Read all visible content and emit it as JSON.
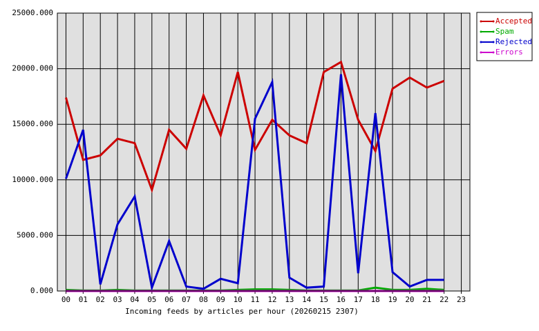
{
  "chart_data": {
    "type": "line",
    "x_label": "Incoming feeds by articles per hour (20260215 2307)",
    "categories": [
      "00",
      "01",
      "02",
      "03",
      "04",
      "05",
      "06",
      "07",
      "08",
      "09",
      "10",
      "11",
      "12",
      "13",
      "14",
      "15",
      "16",
      "17",
      "18",
      "19",
      "20",
      "21",
      "22",
      "23"
    ],
    "series": [
      {
        "name": "Accepted",
        "color": "#cc0000",
        "values": [
          17400,
          11800,
          12200,
          13700,
          13300,
          9100,
          14500,
          12800,
          17600,
          14000,
          19700,
          12700,
          15400,
          14000,
          13300,
          19700,
          20600,
          15400,
          12600,
          18200,
          19200,
          18300,
          18900,
          null
        ]
      },
      {
        "name": "Spam",
        "color": "#00aa00",
        "values": [
          100,
          50,
          50,
          100,
          50,
          50,
          50,
          50,
          50,
          50,
          100,
          150,
          150,
          100,
          50,
          50,
          50,
          50,
          300,
          100,
          100,
          200,
          100,
          null
        ]
      },
      {
        "name": "Rejected",
        "color": "#0000cc",
        "values": [
          10100,
          14500,
          600,
          6000,
          8500,
          300,
          4500,
          400,
          200,
          1100,
          700,
          15500,
          18800,
          1200,
          300,
          400,
          19500,
          1600,
          16000,
          1700,
          400,
          1000,
          1000,
          null
        ]
      },
      {
        "name": "Errors",
        "color": "#cc00cc",
        "values": [
          0,
          0,
          0,
          0,
          0,
          0,
          0,
          0,
          0,
          0,
          0,
          0,
          0,
          0,
          0,
          0,
          0,
          0,
          0,
          0,
          0,
          0,
          0,
          null
        ]
      }
    ],
    "ylim": [
      0,
      25000
    ],
    "yticks": [
      {
        "value": 0,
        "label": "0.000"
      },
      {
        "value": 5000,
        "label": "5000.000"
      },
      {
        "value": 10000,
        "label": "10000.000"
      },
      {
        "value": 15000,
        "label": "15000.000"
      },
      {
        "value": 20000,
        "label": "20000.000"
      },
      {
        "value": 25000,
        "label": "25000.000"
      }
    ],
    "grid": true,
    "legend": "top-right"
  }
}
